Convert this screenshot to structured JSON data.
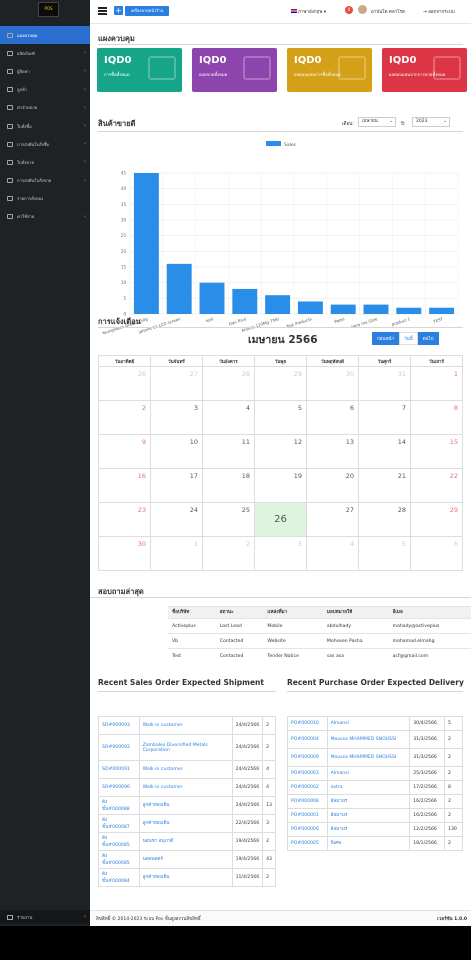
{
  "sidebar": {
    "logo": "POS",
    "items": [
      {
        "label": "แผงควบคุม",
        "active": true,
        "chevron": false,
        "icon": "home-icon"
      },
      {
        "label": "ผลิตภัณฑ์",
        "chevron": true,
        "icon": "cube-icon"
      },
      {
        "label": "ผู้จัดหา",
        "chevron": true,
        "icon": "truck-icon"
      },
      {
        "label": "ลูกค้า",
        "chevron": true,
        "icon": "users-icon"
      },
      {
        "label": "ค่าจำหน่าย",
        "chevron": true,
        "icon": "tag-icon"
      },
      {
        "label": "ใบสั่งซื้อ",
        "chevron": true,
        "icon": "cart-icon"
      },
      {
        "label": "การส่งคืนใบสั่งซื้อ",
        "chevron": true,
        "icon": "return-icon"
      },
      {
        "label": "ใบสั่งขาย",
        "chevron": true,
        "icon": "receipt-icon"
      },
      {
        "label": "การส่งคืนใบสั่งขาย",
        "chevron": true,
        "icon": "return-icon"
      },
      {
        "label": "รายการสั่งของ",
        "chevron": false,
        "icon": "list-icon"
      },
      {
        "label": "ค่าใช้จ่าย",
        "chevron": true,
        "icon": "wallet-icon"
      }
    ],
    "bottom_label": "รายงาน"
  },
  "topbar": {
    "add": "+",
    "pos_label": "เครื่องขายหน้าร้าน",
    "language": "ภาษาอังกฤษ ▾",
    "notif_count": "0",
    "user": "อาบันโด คลาโรส",
    "logout": "ออกจากระบบ"
  },
  "dashboard": {
    "title": "แผงควบคุม",
    "boxes": [
      {
        "amount": "IQD0",
        "label": "การซื้อทั้งหมด",
        "color": "#17a589"
      },
      {
        "amount": "IQD0",
        "label": "ยอดขายทั้งหมด",
        "color": "#8e44ad"
      },
      {
        "amount": "IQD0",
        "label": "ผลตอบแทนการซื้อทั้งหมด",
        "color": "#d4a017"
      },
      {
        "amount": "IQD0",
        "label": "ผลตอบแทนจากการขายทั้งหมด",
        "color": "#dc3545"
      }
    ]
  },
  "products": {
    "title": "สินค้าขายดี",
    "month_label": "เดือน:",
    "month": "เมษายน",
    "year_label": "ปี:",
    "year": "2023"
  },
  "chart_data": {
    "type": "bar",
    "legend": "Sales",
    "categories": [
      "Youngsteen Green 150g",
      "iphone 11 LCD screen",
      "test",
      "Dan Rice",
      "Arouse 120Mg 7Tab",
      "Test Products",
      "Pepsi",
      "Vera me Gole",
      "product 1",
      "TEST"
    ],
    "values": [
      45,
      16,
      10,
      8,
      6,
      4,
      3,
      3,
      2,
      2
    ],
    "ylim": [
      0,
      45
    ],
    "yticks": [
      0,
      5,
      10,
      15,
      20,
      25,
      30,
      35,
      40,
      45
    ],
    "color": "#2a8ee8"
  },
  "calendar": {
    "title": "การแจ้งเตือน",
    "month": "เมษายน 2566",
    "btn_prev": "ก่อนหน้า",
    "btn_today": "วันนี้",
    "btn_next": "ต่อไป",
    "days": [
      "วันอาทิตย์",
      "วันจันทร์",
      "วันอังคาร",
      "วันพุธ",
      "วันพฤหัสบดี",
      "วันศุกร์",
      "วันเสาร์"
    ],
    "weeks": [
      [
        "26",
        "27",
        "28",
        "29",
        "30",
        "31",
        "1"
      ],
      [
        "2",
        "3",
        "4",
        "5",
        "6",
        "7",
        "8"
      ],
      [
        "9",
        "10",
        "11",
        "12",
        "13",
        "14",
        "15"
      ],
      [
        "16",
        "17",
        "18",
        "19",
        "20",
        "21",
        "22"
      ],
      [
        "23",
        "24",
        "25",
        "26",
        "27",
        "28",
        "29"
      ],
      [
        "30",
        "1",
        "2",
        "3",
        "4",
        "5",
        "6"
      ]
    ]
  },
  "leads": {
    "title": "สอบถามล่าสุด",
    "headers": [
      "ชื่อบริษัท",
      "สถานะ",
      "แหล่งที่มา",
      "มอบหมายให้",
      "อีเมล"
    ],
    "rows": [
      [
        "Activeplus",
        "Lost Lead",
        "Mobile",
        "abdulhady",
        "mahady@activeplus"
      ],
      [
        "Vb",
        "Contacted",
        "Website",
        "Mohseen Pasha",
        "mohamad.elmahg"
      ],
      [
        "Test",
        "Contacted",
        "Tender Notice",
        "sas asa",
        "acf@gmail.com"
      ]
    ]
  },
  "sales_orders": {
    "title": "Recent Sales Order Expected Shipment",
    "rows": [
      [
        "SO#000093",
        "Walk-in customer",
        "24/4/2566",
        "2"
      ],
      [
        "SO#000092",
        "Zambales Diversified Metals Corporation",
        "24/4/2566",
        "2"
      ],
      [
        "SO#000091",
        "Walk-in customer",
        "24/4/2566",
        "4"
      ],
      [
        "SO#000090",
        "Walk-in customer",
        "24/4/2566",
        "4"
      ],
      [
        "ดัง ขั้น#000088",
        "ลูกค้าท่องเดิน",
        "24/4/2566",
        "13"
      ],
      [
        "ดัง ขั้น#000087",
        "ลูกค้าท่องเดิน",
        "22/4/2566",
        "3"
      ],
      [
        "ดัง ขั้น#000085",
        "นอนชา อนุภาดี",
        "19/4/2566",
        "2"
      ],
      [
        "ดัง ขั้น#000085",
        "นคลพลตร์",
        "19/4/2566",
        "43"
      ],
      [
        "ดัง ขั้น#000084",
        "ลูกค้าท่องเดิน",
        "11/4/2566",
        "2"
      ]
    ]
  },
  "purchase_orders": {
    "title": "Recent Purchase Order Expected Delivery",
    "rows": [
      [
        "PO#000010",
        "Almansi",
        "30/4/2566",
        "5"
      ],
      [
        "PO#000004",
        "Moussa MHAMMED SNOUSSI",
        "31/3/2566",
        "2"
      ],
      [
        "PO#000009",
        "Moussa MHAMMED SNOUSSI",
        "31/3/2566",
        "2"
      ],
      [
        "PO#000003",
        "Almansi",
        "25/3/2566",
        "2"
      ],
      [
        "PO#000002",
        "extra",
        "17/2/2566",
        "8"
      ],
      [
        "PO#000008",
        "อัลมานร",
        "16/2/2566",
        "2"
      ],
      [
        "PO#000001",
        "อัลมานร",
        "16/2/2566",
        "2"
      ],
      [
        "PO#000006",
        "อัลมานร",
        "12/2/2566",
        "130"
      ],
      [
        "PO#000005",
        "พิเศษ",
        "18/1/2566",
        "2"
      ]
    ]
  },
  "footer": {
    "copyright": "ลิขสิทธิ์ © 2014-2023 ระบบ Pos ขั้นสูงสงวนลิขสิทธิ์",
    "version": "เวอร์ชัน 1.0.0"
  }
}
